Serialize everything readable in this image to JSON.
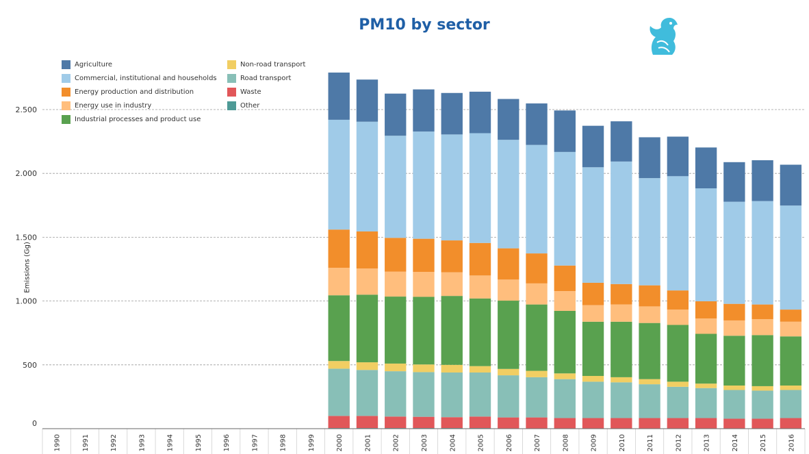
{
  "chart_data": {
    "type": "bar",
    "stacked": true,
    "title": "PM10 by sector",
    "xlabel": "",
    "ylabel": "Emissions (Gg)",
    "ylim": [
      0,
      2800
    ],
    "yticks": [
      0,
      500,
      1000,
      1500,
      2000,
      2500
    ],
    "ytick_labels": [
      "0",
      "500",
      "1.000",
      "1.500",
      "2.000",
      "2.500"
    ],
    "categories": [
      "1990",
      "1991",
      "1992",
      "1993",
      "1994",
      "1995",
      "1996",
      "1997",
      "1998",
      "1999",
      "2000",
      "2001",
      "2002",
      "2003",
      "2004",
      "2005",
      "2006",
      "2007",
      "2008",
      "2009",
      "2010",
      "2011",
      "2012",
      "2013",
      "2014",
      "2015",
      "2016"
    ],
    "legend_position": "top-left",
    "series": [
      {
        "name": "Other",
        "color": "#4e9a96",
        "values": [
          null,
          null,
          null,
          null,
          null,
          null,
          null,
          null,
          null,
          null,
          5,
          5,
          5,
          5,
          5,
          5,
          3,
          3,
          3,
          3,
          3,
          3,
          3,
          3,
          3,
          3,
          3
        ]
      },
      {
        "name": "Waste",
        "color": "#e15759",
        "values": [
          null,
          null,
          null,
          null,
          null,
          null,
          null,
          null,
          null,
          null,
          95,
          95,
          90,
          88,
          85,
          90,
          85,
          85,
          80,
          80,
          80,
          80,
          80,
          80,
          75,
          75,
          80
        ]
      },
      {
        "name": "Road transport",
        "color": "#88bfb7",
        "values": [
          null,
          null,
          null,
          null,
          null,
          null,
          null,
          null,
          null,
          null,
          370,
          360,
          355,
          350,
          350,
          345,
          330,
          315,
          305,
          285,
          280,
          265,
          245,
          235,
          225,
          220,
          220
        ]
      },
      {
        "name": "Non-road transport",
        "color": "#f1ce63",
        "values": [
          null,
          null,
          null,
          null,
          null,
          null,
          null,
          null,
          null,
          null,
          60,
          60,
          60,
          60,
          60,
          50,
          50,
          50,
          45,
          45,
          40,
          40,
          40,
          35,
          35,
          35,
          35
        ]
      },
      {
        "name": "Industrial processes and product use",
        "color": "#59a14f",
        "values": [
          null,
          null,
          null,
          null,
          null,
          null,
          null,
          null,
          null,
          null,
          515,
          530,
          525,
          530,
          540,
          530,
          535,
          520,
          490,
          425,
          435,
          440,
          445,
          390,
          390,
          400,
          385
        ]
      },
      {
        "name": "Energy use in industry",
        "color": "#ffbe7d",
        "values": [
          null,
          null,
          null,
          null,
          null,
          null,
          null,
          null,
          null,
          null,
          215,
          205,
          195,
          195,
          185,
          180,
          165,
          165,
          155,
          130,
          135,
          130,
          120,
          120,
          120,
          125,
          115
        ]
      },
      {
        "name": "Energy production and distribution",
        "color": "#f28e2b",
        "values": [
          null,
          null,
          null,
          null,
          null,
          null,
          null,
          null,
          null,
          null,
          300,
          290,
          265,
          260,
          250,
          255,
          245,
          235,
          200,
          175,
          160,
          165,
          150,
          135,
          130,
          115,
          95
        ]
      },
      {
        "name": "Commercial, institutional and households",
        "color": "#a0cbe8",
        "values": [
          null,
          null,
          null,
          null,
          null,
          null,
          null,
          null,
          null,
          null,
          860,
          860,
          800,
          840,
          830,
          860,
          850,
          850,
          890,
          905,
          960,
          840,
          895,
          885,
          800,
          810,
          815
        ]
      },
      {
        "name": "Agriculture",
        "color": "#4e79a7",
        "values": [
          null,
          null,
          null,
          null,
          null,
          null,
          null,
          null,
          null,
          null,
          370,
          330,
          330,
          330,
          325,
          325,
          320,
          325,
          325,
          325,
          315,
          320,
          310,
          320,
          310,
          320,
          320
        ]
      }
    ],
    "legend_order": [
      "Agriculture",
      "Commercial, institutional and households",
      "Energy production and distribution",
      "Energy use in industry",
      "Industrial processes and product use",
      "Non-road transport",
      "Road transport",
      "Waste",
      "Other"
    ]
  }
}
